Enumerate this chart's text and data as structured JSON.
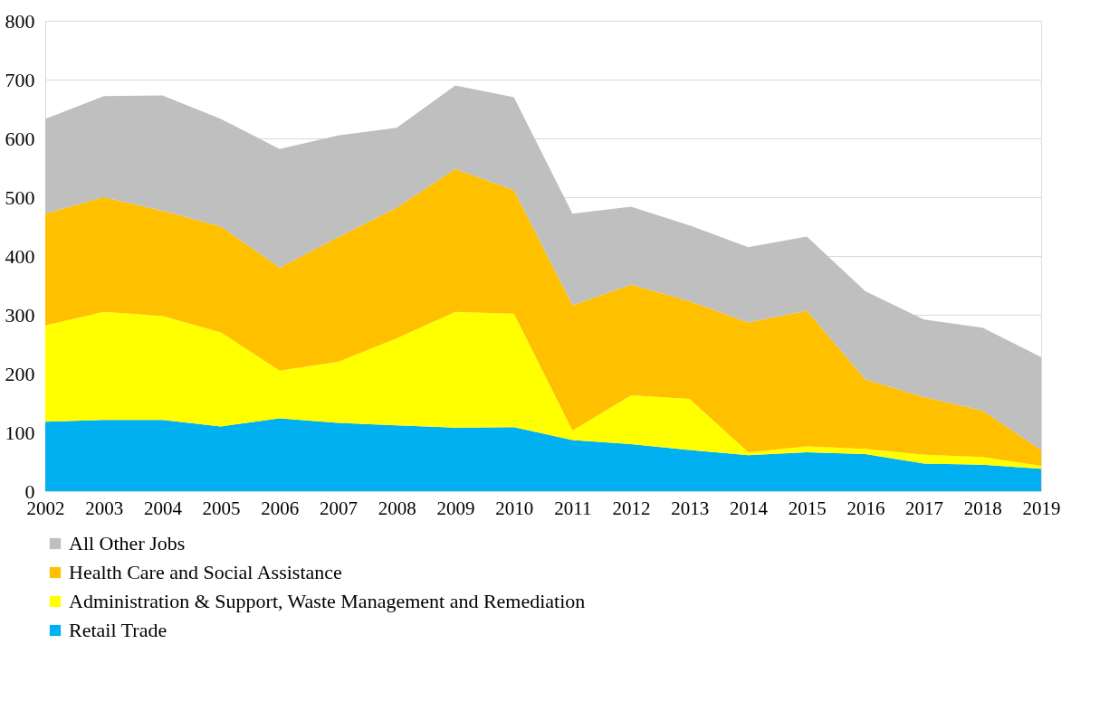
{
  "chart_data": {
    "type": "area",
    "stacked": true,
    "categories": [
      "2002",
      "2003",
      "2004",
      "2005",
      "2006",
      "2007",
      "2008",
      "2009",
      "2010",
      "2011",
      "2012",
      "2013",
      "2014",
      "2015",
      "2016",
      "2017",
      "2018",
      "2019"
    ],
    "series": [
      {
        "name": "Retail Trade",
        "color": "#00b0f0",
        "values": [
          118,
          121,
          121,
          110,
          124,
          116,
          112,
          108,
          109,
          87,
          80,
          70,
          61,
          66,
          63,
          47,
          45,
          38
        ]
      },
      {
        "name": "Administration & Support, Waste Management and Remediation",
        "color": "#ffff00",
        "values": [
          164,
          184,
          177,
          160,
          81,
          104,
          148,
          197,
          193,
          16,
          83,
          87,
          5,
          10,
          9,
          15,
          13,
          5
        ]
      },
      {
        "name": "Health Care and Social Assistance",
        "color": "#ffc000",
        "values": [
          190,
          195,
          179,
          180,
          175,
          212,
          222,
          243,
          210,
          213,
          188,
          166,
          221,
          231,
          118,
          98,
          79,
          27
        ]
      },
      {
        "name": "All Other Jobs",
        "color": "#bfbfbf",
        "values": [
          161,
          172,
          196,
          183,
          202,
          173,
          136,
          142,
          158,
          156,
          133,
          129,
          128,
          126,
          150,
          132,
          141,
          158
        ]
      }
    ],
    "ylim": [
      0,
      800
    ],
    "yticks": [
      0,
      100,
      200,
      300,
      400,
      500,
      600,
      700,
      800
    ],
    "grid": "y",
    "legend": "bottom"
  }
}
